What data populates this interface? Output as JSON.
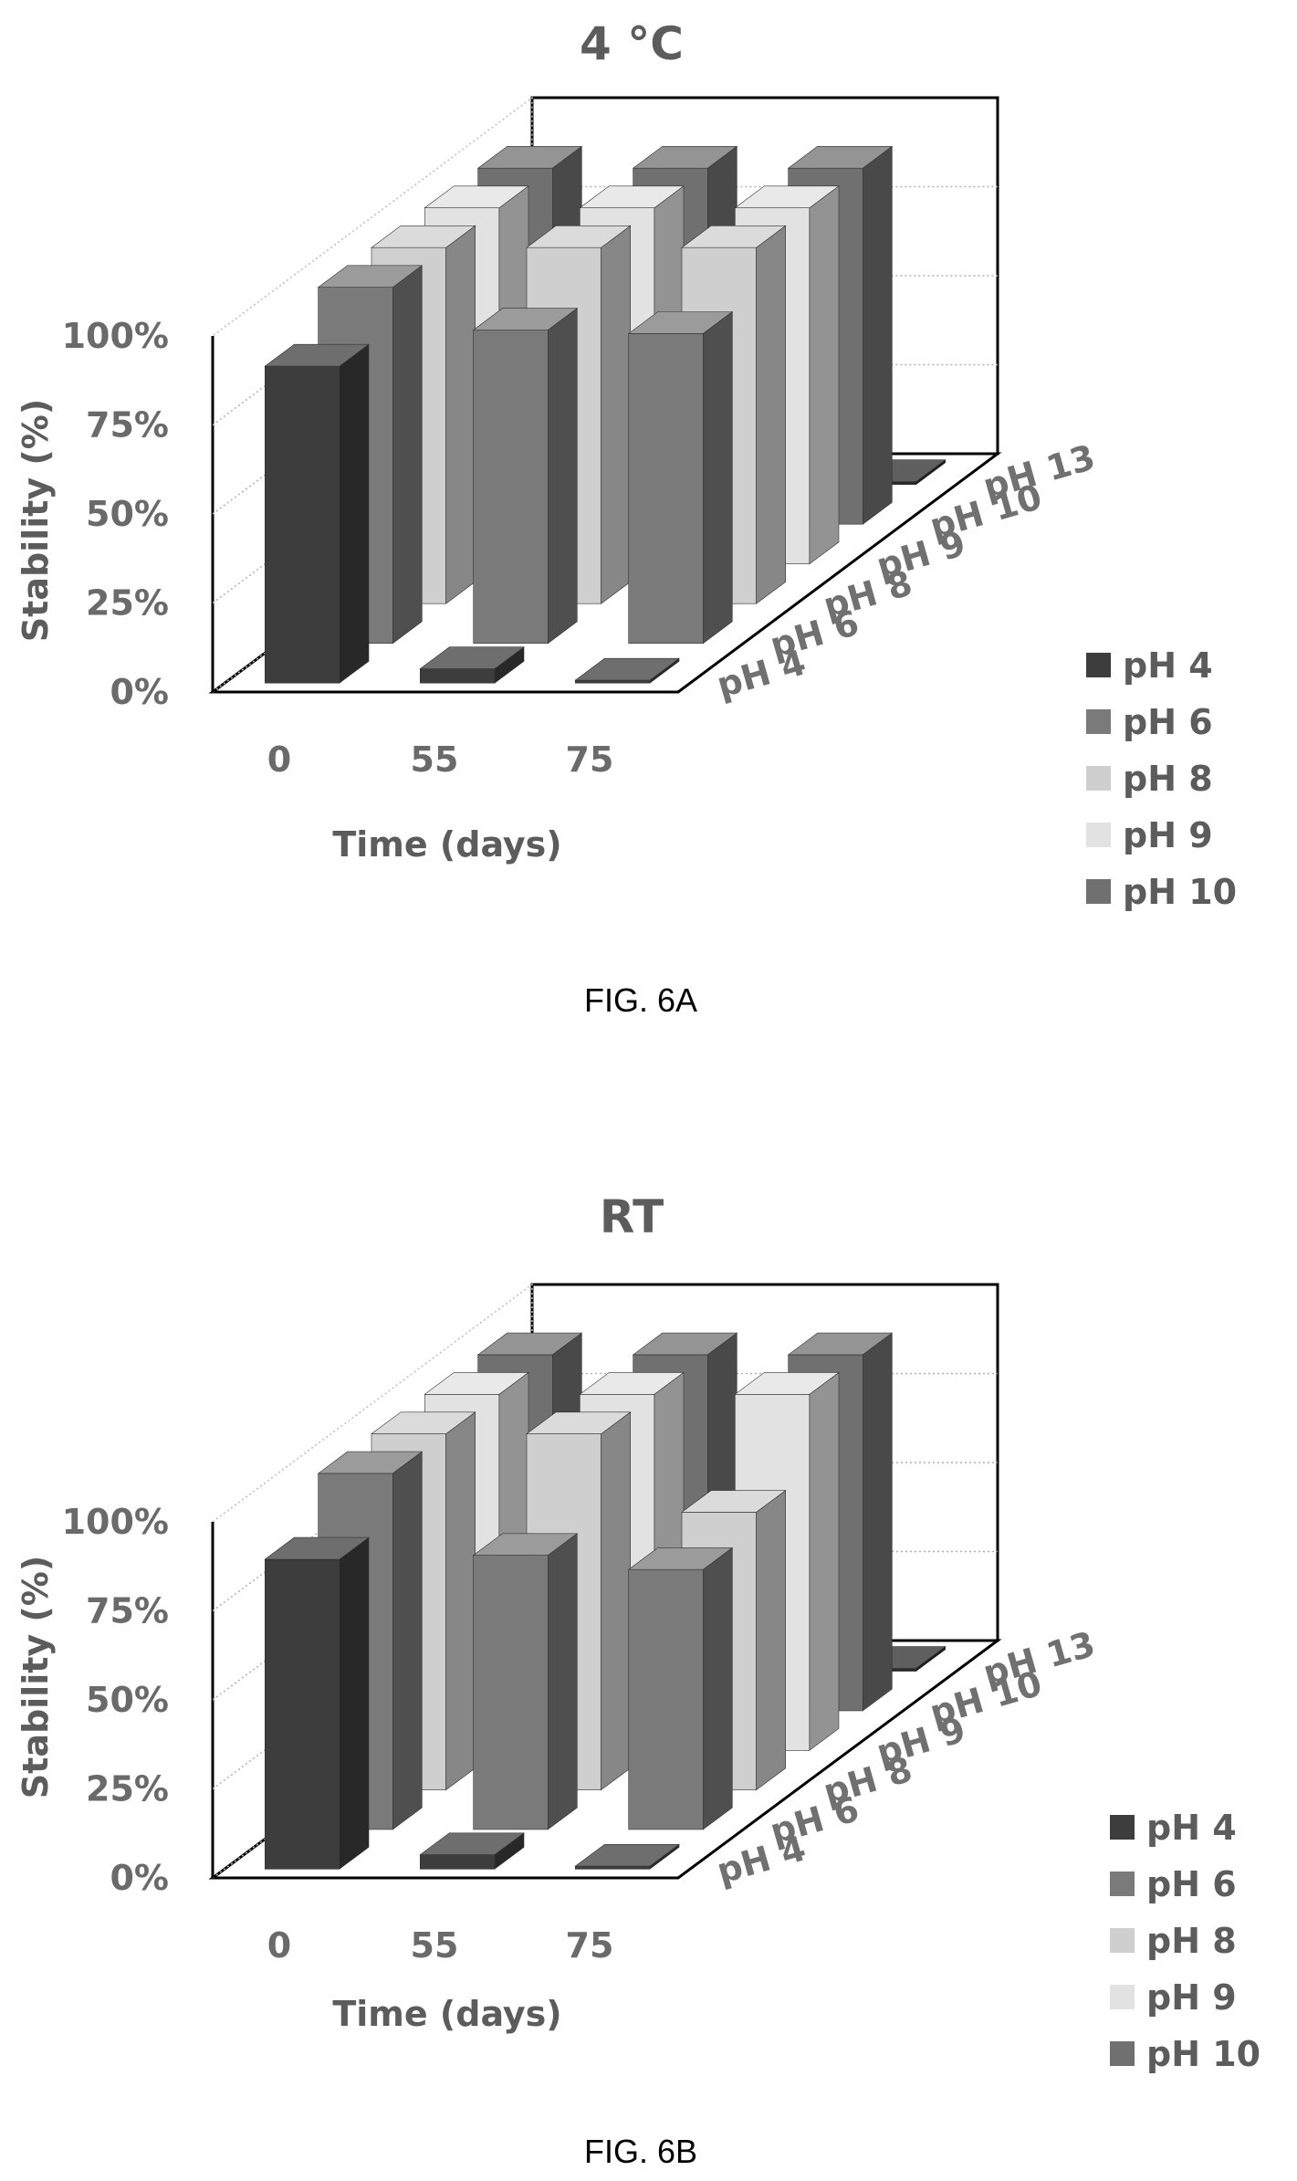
{
  "figures": [
    {
      "caption": "FIG. 6A"
    },
    {
      "caption": "FIG. 6B"
    }
  ],
  "colors": {
    "pH 4": "#3d3d3d",
    "pH 6": "#7a7a7a",
    "pH 8": "#cfcfcf",
    "pH 9": "#e2e2e2",
    "pH 10": "#707070",
    "pH 13": "#2a2a2a"
  },
  "chart_data": [
    {
      "type": "bar",
      "subtype": "3d-clustered",
      "title": "4 °C",
      "xlabel": "Time (days)",
      "ylabel": "Stability (%)",
      "categories": [
        "0",
        "55",
        "75"
      ],
      "depth_labels": [
        "pH 4",
        "pH 6",
        "pH 8",
        "pH 9",
        "pH 10",
        "pH 13"
      ],
      "yticks": [
        "0%",
        "25%",
        "50%",
        "75%",
        "100%"
      ],
      "ylim": [
        0,
        100
      ],
      "grid": true,
      "legend": {
        "position": "right",
        "entries": [
          "pH 4",
          "pH 6",
          "pH 8",
          "pH 9",
          "pH 10"
        ]
      },
      "series": [
        {
          "name": "pH 4",
          "values": [
            89,
            4,
            0
          ]
        },
        {
          "name": "pH 6",
          "values": [
            100,
            88,
            87
          ]
        },
        {
          "name": "pH 8",
          "values": [
            100,
            100,
            100
          ]
        },
        {
          "name": "pH 9",
          "values": [
            100,
            100,
            100
          ]
        },
        {
          "name": "pH 10",
          "values": [
            100,
            100,
            100
          ]
        },
        {
          "name": "pH 13",
          "values": [
            0,
            0,
            0
          ]
        }
      ]
    },
    {
      "type": "bar",
      "subtype": "3d-clustered",
      "title": "RT",
      "xlabel": "Time (days)",
      "ylabel": "Stability (%)",
      "categories": [
        "0",
        "55",
        "75"
      ],
      "depth_labels": [
        "pH 4",
        "pH 6",
        "pH 8",
        "pH 9",
        "pH 10",
        "pH 13"
      ],
      "yticks": [
        "0%",
        "25%",
        "50%",
        "75%",
        "100%"
      ],
      "ylim": [
        0,
        100
      ],
      "grid": true,
      "legend": {
        "position": "right",
        "entries": [
          "pH 4",
          "pH 6",
          "pH 8",
          "pH 9",
          "pH 10"
        ]
      },
      "series": [
        {
          "name": "pH 4",
          "values": [
            87,
            4,
            0
          ]
        },
        {
          "name": "pH 6",
          "values": [
            100,
            77,
            73
          ]
        },
        {
          "name": "pH 8",
          "values": [
            100,
            100,
            78
          ]
        },
        {
          "name": "pH 9",
          "values": [
            100,
            100,
            100
          ]
        },
        {
          "name": "pH 10",
          "values": [
            100,
            100,
            100
          ]
        },
        {
          "name": "pH 13",
          "values": [
            0,
            0,
            0
          ]
        }
      ]
    }
  ]
}
